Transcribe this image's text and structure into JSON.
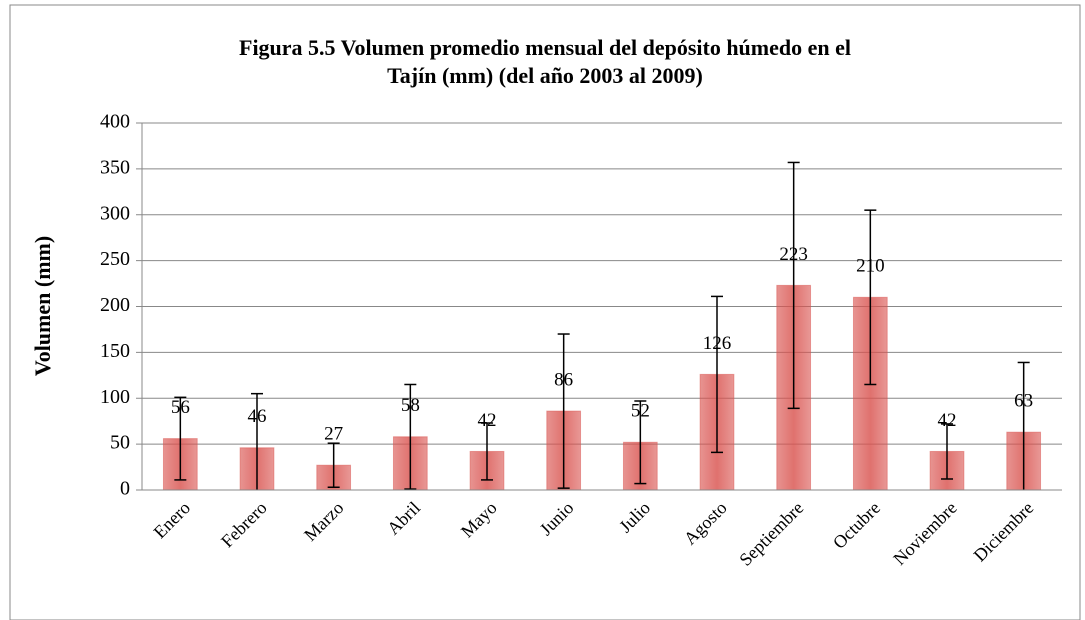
{
  "chart_data": {
    "type": "bar",
    "title": "Figura 5.5 Volumen promedio mensual del depósito húmedo en el Tajín (mm) (del año 2003 al 2009)",
    "title_lines": [
      "Figura 5.5 Volumen promedio mensual del depósito húmedo en el",
      "Tajín (mm) (del año 2003 al 2009)"
    ],
    "y_label": "Volumen (mm)",
    "categories": [
      "Enero",
      "Febrero",
      "Marzo",
      "Abril",
      "Mayo",
      "Junio",
      "Julio",
      "Agosto",
      "Septiembre",
      "Octubre",
      "Noviembre",
      "Diciembre"
    ],
    "values": [
      56,
      46,
      27,
      58,
      42,
      86,
      52,
      126,
      223,
      210,
      42,
      63
    ],
    "errors": [
      45,
      59,
      24,
      57,
      31,
      84,
      45,
      85,
      134,
      95,
      30,
      76
    ],
    "color": "#d9534f",
    "ylim": [
      0,
      400
    ],
    "yticks": [
      0,
      50,
      100,
      150,
      200,
      250,
      300,
      350,
      400
    ],
    "grid": true
  }
}
